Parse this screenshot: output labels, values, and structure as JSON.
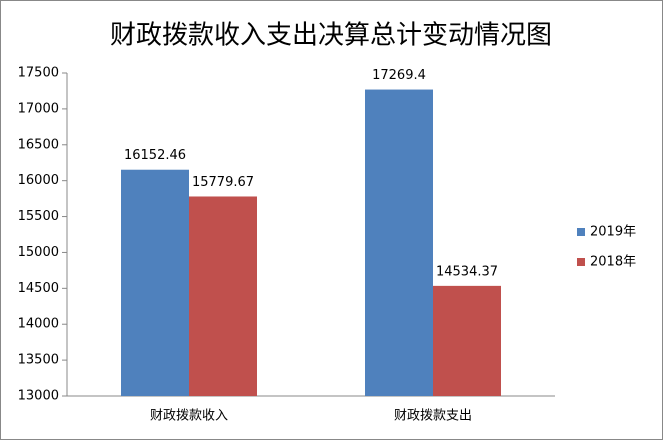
{
  "chart_data": {
    "type": "bar",
    "title": "财政拨款收入支出决算总计变动情况图",
    "categories": [
      "财政拨款收入",
      "财政拨款支出"
    ],
    "series": [
      {
        "name": "2019年",
        "color": "#4f81bd",
        "values": [
          16152.46,
          17269.4
        ]
      },
      {
        "name": "2018年",
        "color": "#c0504d",
        "values": [
          15779.67,
          14534.37
        ]
      }
    ],
    "ylim": [
      13000,
      17500
    ],
    "yticks": [
      13000,
      13500,
      14000,
      14500,
      15000,
      15500,
      16000,
      16500,
      17000,
      17500
    ],
    "grid": false,
    "legend": "right"
  }
}
